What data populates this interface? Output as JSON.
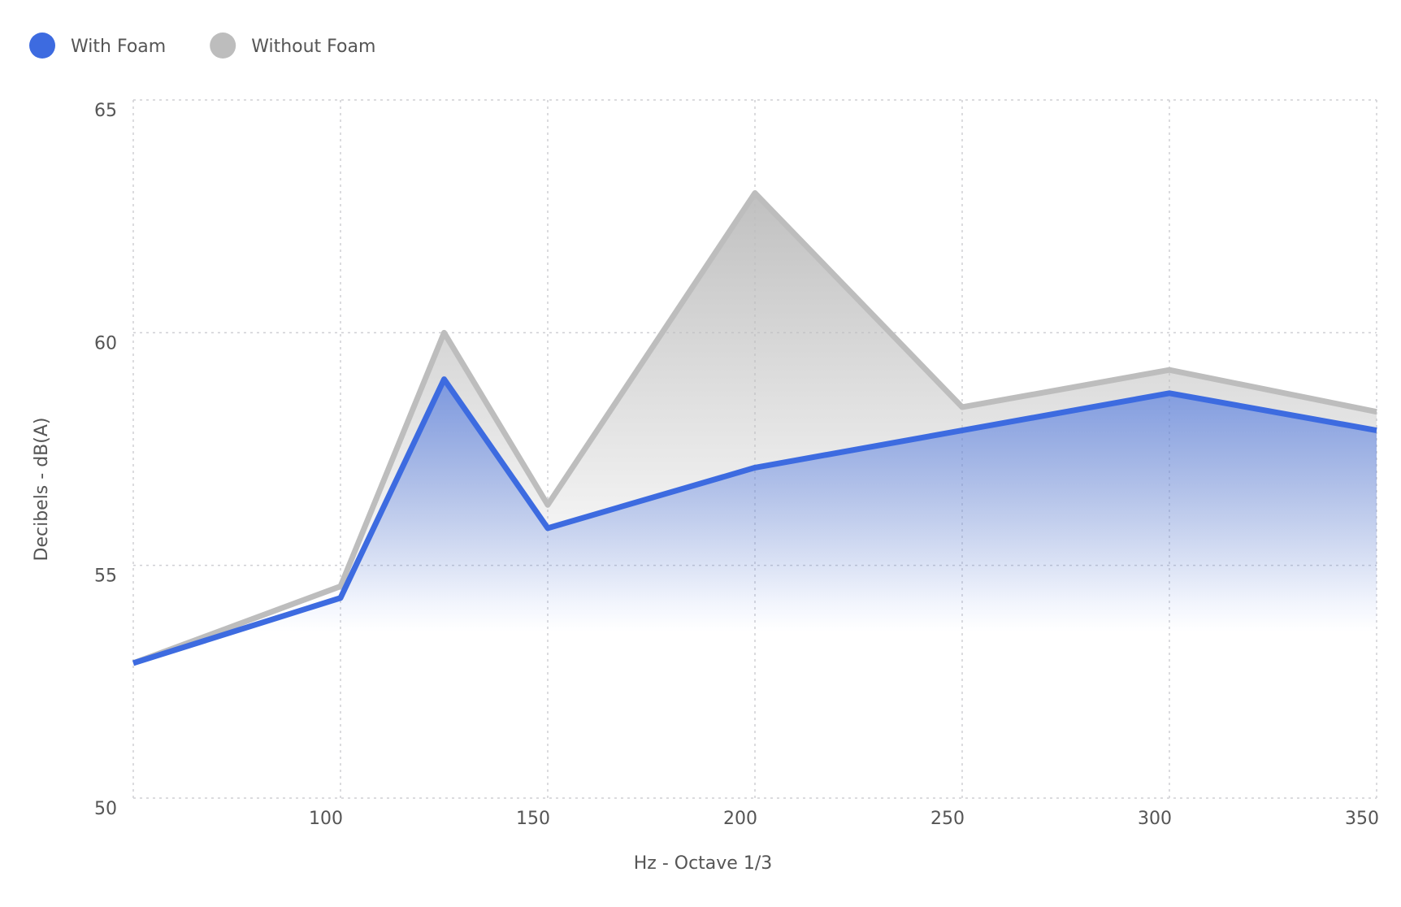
{
  "chart_data": {
    "type": "area",
    "x_label": "Hz - Octave 1/3",
    "y_label": "Decibels - dB(A)",
    "x": [
      50,
      100,
      125,
      150,
      200,
      250,
      300,
      350
    ],
    "series": [
      {
        "name": "Without Foam",
        "color": "#bdbdbd",
        "values": [
          52.9,
          54.55,
          60.0,
          56.3,
          63.0,
          58.4,
          59.2,
          58.3
        ]
      },
      {
        "name": "With Foam",
        "color": "#3d6be0",
        "values": [
          52.9,
          54.3,
          59.0,
          55.8,
          57.1,
          57.9,
          58.7,
          57.9
        ]
      }
    ],
    "legend_order": [
      "With Foam",
      "Without Foam"
    ],
    "xlim": [
      50,
      350
    ],
    "xticks": [
      100,
      150,
      200,
      250,
      300,
      350
    ],
    "ylim": [
      50,
      65
    ],
    "yticks": [
      50,
      55,
      60,
      65
    ],
    "grid": true
  }
}
